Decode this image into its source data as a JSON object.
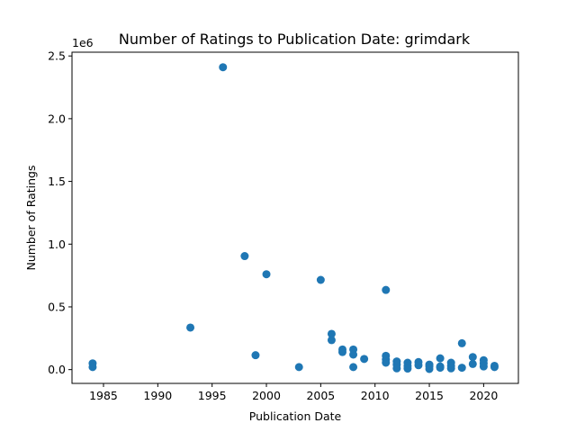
{
  "chart_data": {
    "type": "scatter",
    "title": "Number of Ratings to Publication Date: grimdark",
    "xlabel": "Publication Date",
    "ylabel": "Number of Ratings",
    "y_offset_text": "1e6",
    "xlim": [
      1982.1,
      2023.2
    ],
    "ylim": [
      -110000,
      2530000
    ],
    "x_ticks": [
      1985,
      1990,
      1995,
      2000,
      2005,
      2010,
      2015,
      2020
    ],
    "y_ticks": [
      0,
      500000,
      1000000,
      1500000,
      2000000,
      2500000
    ],
    "y_tick_labels": [
      "0.0",
      "0.5",
      "1.0",
      "1.5",
      "2.0",
      "2.5"
    ],
    "grid": false,
    "legend": "none",
    "marker_color": "#1f77b4",
    "points": [
      {
        "x": 1984,
        "y": 50000
      },
      {
        "x": 1984,
        "y": 20000
      },
      {
        "x": 1993,
        "y": 335000
      },
      {
        "x": 1996,
        "y": 2410000
      },
      {
        "x": 1998,
        "y": 905000
      },
      {
        "x": 1999,
        "y": 115000
      },
      {
        "x": 2000,
        "y": 760000
      },
      {
        "x": 2003,
        "y": 20000
      },
      {
        "x": 2005,
        "y": 715000
      },
      {
        "x": 2006,
        "y": 285000
      },
      {
        "x": 2006,
        "y": 235000
      },
      {
        "x": 2007,
        "y": 160000
      },
      {
        "x": 2007,
        "y": 140000
      },
      {
        "x": 2008,
        "y": 160000
      },
      {
        "x": 2008,
        "y": 120000
      },
      {
        "x": 2008,
        "y": 20000
      },
      {
        "x": 2009,
        "y": 85000
      },
      {
        "x": 2011,
        "y": 635000
      },
      {
        "x": 2011,
        "y": 110000
      },
      {
        "x": 2011,
        "y": 80000
      },
      {
        "x": 2011,
        "y": 55000
      },
      {
        "x": 2012,
        "y": 65000
      },
      {
        "x": 2012,
        "y": 40000
      },
      {
        "x": 2012,
        "y": 10000
      },
      {
        "x": 2013,
        "y": 55000
      },
      {
        "x": 2013,
        "y": 30000
      },
      {
        "x": 2013,
        "y": 8000
      },
      {
        "x": 2014,
        "y": 60000
      },
      {
        "x": 2014,
        "y": 35000
      },
      {
        "x": 2015,
        "y": 40000
      },
      {
        "x": 2015,
        "y": 25000
      },
      {
        "x": 2015,
        "y": 5000
      },
      {
        "x": 2016,
        "y": 90000
      },
      {
        "x": 2016,
        "y": 25000
      },
      {
        "x": 2016,
        "y": 15000
      },
      {
        "x": 2017,
        "y": 55000
      },
      {
        "x": 2017,
        "y": 30000
      },
      {
        "x": 2017,
        "y": 10000
      },
      {
        "x": 2018,
        "y": 210000
      },
      {
        "x": 2018,
        "y": 15000
      },
      {
        "x": 2019,
        "y": 100000
      },
      {
        "x": 2019,
        "y": 45000
      },
      {
        "x": 2020,
        "y": 75000
      },
      {
        "x": 2020,
        "y": 50000
      },
      {
        "x": 2020,
        "y": 25000
      },
      {
        "x": 2021,
        "y": 30000
      },
      {
        "x": 2021,
        "y": 20000
      }
    ]
  }
}
